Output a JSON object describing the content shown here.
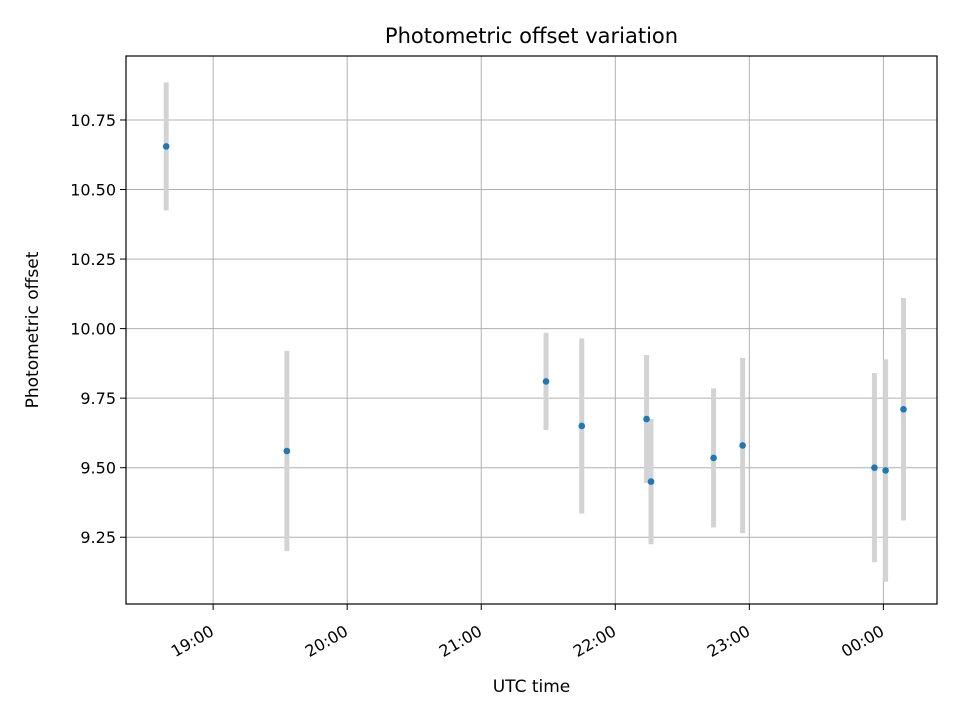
{
  "chart_data": {
    "type": "scatter",
    "title": "Photometric offset variation",
    "xlabel": "UTC time",
    "ylabel": "Photometric offset",
    "x_ticks": [
      "19:00",
      "20:00",
      "21:00",
      "22:00",
      "23:00",
      "00:00"
    ],
    "y_ticks": [
      "9.25",
      "9.50",
      "9.75",
      "10.00",
      "10.25",
      "10.50",
      "10.75"
    ],
    "x_tick_values_hours": [
      19,
      20,
      21,
      22,
      23,
      24
    ],
    "y_tick_values": [
      9.25,
      9.5,
      9.75,
      10.0,
      10.25,
      10.5,
      10.75
    ],
    "xlim_hours": [
      18.35,
      24.4
    ],
    "ylim": [
      9.01,
      10.98
    ],
    "grid": true,
    "marker_color": "#1f77b4",
    "errorbar_color": "#d3d3d3",
    "points": [
      {
        "time": "18:39",
        "y": 10.655,
        "yerr": 0.23
      },
      {
        "time": "19:33",
        "y": 9.56,
        "yerr": 0.36
      },
      {
        "time": "21:29",
        "y": 9.81,
        "yerr": 0.175
      },
      {
        "time": "21:45",
        "y": 9.65,
        "yerr": 0.315
      },
      {
        "time": "22:14",
        "y": 9.675,
        "yerr": 0.23
      },
      {
        "time": "22:16",
        "y": 9.45,
        "yerr": 0.225
      },
      {
        "time": "22:44",
        "y": 9.535,
        "yerr": 0.25
      },
      {
        "time": "22:57",
        "y": 9.58,
        "yerr": 0.315
      },
      {
        "time": "23:56",
        "y": 9.5,
        "yerr": 0.34
      },
      {
        "time": "00:01",
        "y": 9.49,
        "yerr": 0.4
      },
      {
        "time": "00:09",
        "y": 9.71,
        "yerr": 0.4
      }
    ]
  }
}
